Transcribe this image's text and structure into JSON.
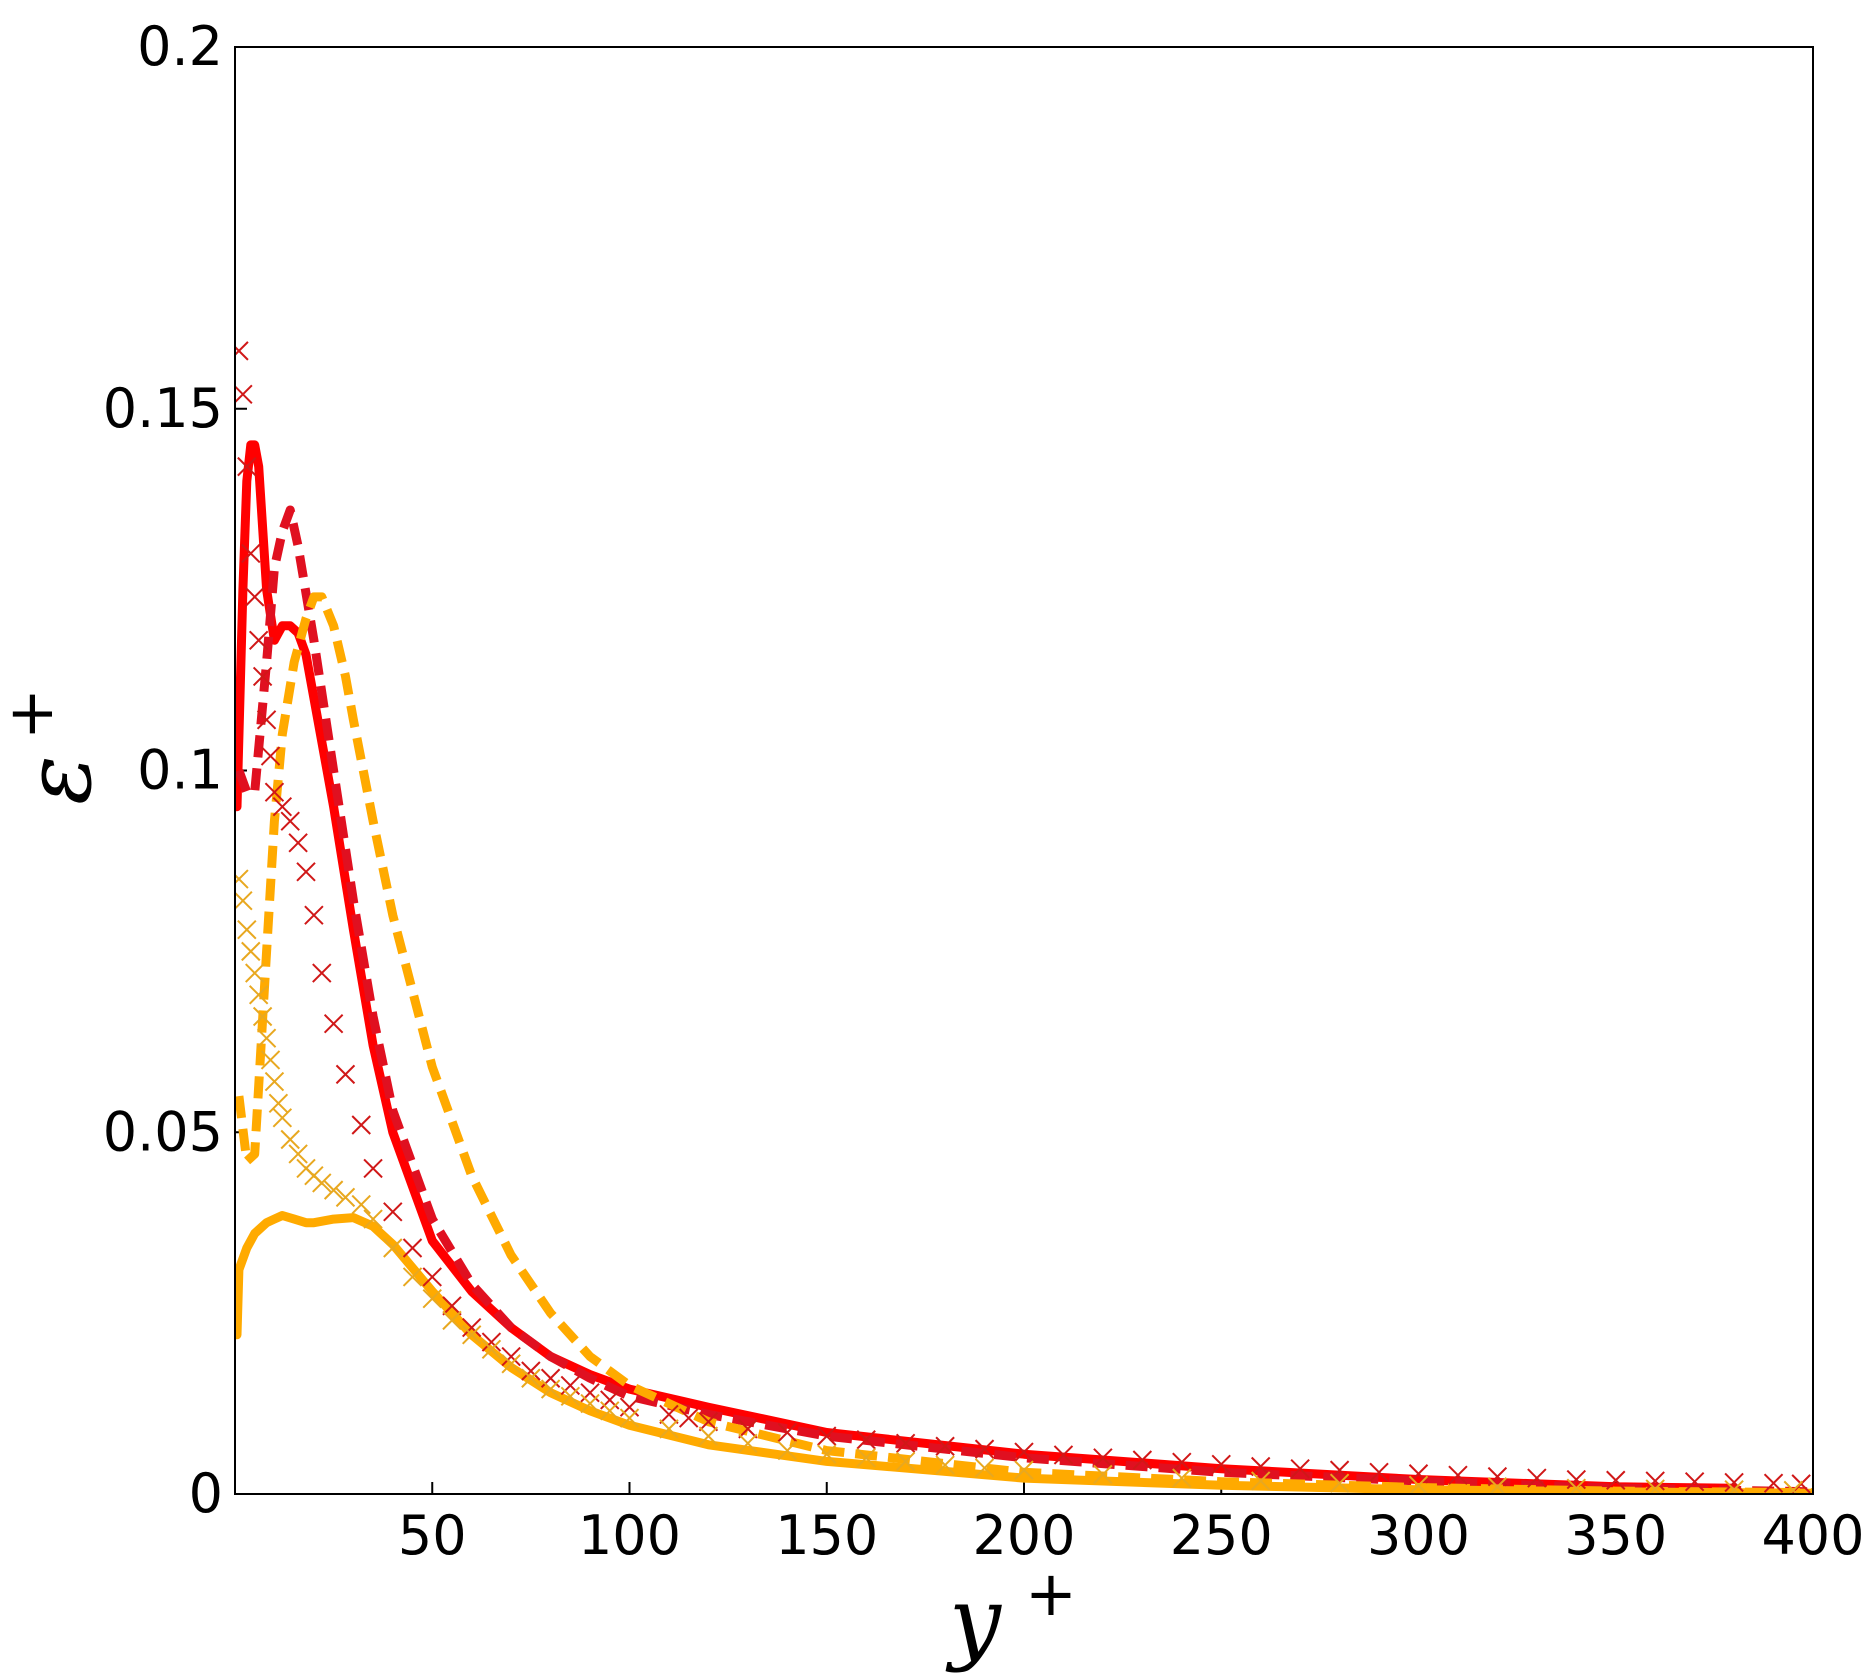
{
  "chart_data": {
    "type": "line",
    "title": "",
    "xlabel": "y",
    "xlabel_sup": "+",
    "ylabel": "ε",
    "ylabel_sup": "+",
    "xlim": [
      0,
      400
    ],
    "ylim": [
      0,
      0.2
    ],
    "xticks": [
      50,
      100,
      150,
      200,
      250,
      300,
      350,
      400
    ],
    "xtick_labels": [
      "50",
      "100",
      "150",
      "200",
      "250",
      "300",
      "350",
      "400"
    ],
    "yticks": [
      0,
      0.05,
      0.1,
      0.15,
      0.2
    ],
    "ytick_labels": [
      "0",
      "0.05",
      "0.1",
      "0.15",
      "0.2"
    ],
    "grid": false,
    "legend": "none",
    "series": [
      {
        "style": "solid",
        "color": "#ff0000",
        "x": [
          0.5,
          2,
          3,
          4,
          5,
          6,
          8,
          10,
          12,
          14,
          16,
          18,
          20,
          25,
          30,
          35,
          40,
          50,
          60,
          70,
          80,
          90,
          100,
          120,
          150,
          200,
          250,
          300,
          350,
          380
        ],
        "y": [
          0.095,
          0.125,
          0.14,
          0.145,
          0.145,
          0.142,
          0.125,
          0.118,
          0.12,
          0.12,
          0.119,
          0.116,
          0.11,
          0.095,
          0.078,
          0.062,
          0.05,
          0.035,
          0.028,
          0.023,
          0.019,
          0.0165,
          0.0145,
          0.012,
          0.0085,
          0.0055,
          0.0035,
          0.002,
          0.001,
          0.0008
        ]
      },
      {
        "style": "dashed",
        "color": "#e01020",
        "x": [
          1,
          3,
          5,
          8,
          10,
          12,
          14,
          16,
          20,
          25,
          30,
          35,
          40,
          50,
          60,
          70,
          80,
          90,
          100,
          120,
          150,
          200,
          250,
          300,
          350,
          400
        ],
        "y": [
          0.1,
          0.097,
          0.097,
          0.115,
          0.128,
          0.133,
          0.136,
          0.131,
          0.118,
          0.1,
          0.082,
          0.066,
          0.053,
          0.038,
          0.029,
          0.023,
          0.019,
          0.016,
          0.0135,
          0.011,
          0.008,
          0.005,
          0.003,
          0.0018,
          0.0008,
          0.0003
        ]
      },
      {
        "style": "dashed",
        "color": "#ffaa00",
        "x": [
          1,
          3,
          5,
          8,
          10,
          12,
          15,
          18,
          20,
          22,
          25,
          28,
          30,
          35,
          40,
          50,
          60,
          70,
          80,
          90,
          100,
          120,
          150,
          200,
          250,
          300,
          350,
          400
        ],
        "y": [
          0.055,
          0.046,
          0.047,
          0.075,
          0.093,
          0.105,
          0.115,
          0.121,
          0.124,
          0.124,
          0.12,
          0.113,
          0.107,
          0.093,
          0.08,
          0.059,
          0.044,
          0.033,
          0.025,
          0.019,
          0.015,
          0.01,
          0.006,
          0.003,
          0.0017,
          0.0009,
          0.0004,
          0.0002
        ]
      },
      {
        "style": "solid",
        "color": "#ffaa00",
        "x": [
          0.5,
          1,
          3,
          5,
          8,
          10,
          12,
          15,
          18,
          20,
          25,
          30,
          35,
          40,
          50,
          60,
          70,
          80,
          90,
          100,
          120,
          150,
          200,
          250,
          300,
          350,
          400
        ],
        "y": [
          0.022,
          0.031,
          0.034,
          0.036,
          0.0375,
          0.038,
          0.0385,
          0.038,
          0.0375,
          0.0375,
          0.038,
          0.0382,
          0.037,
          0.0345,
          0.028,
          0.022,
          0.0175,
          0.014,
          0.0115,
          0.0095,
          0.0068,
          0.0045,
          0.0022,
          0.0012,
          0.0006,
          0.0003,
          0.0001
        ]
      },
      {
        "style": "markers-x",
        "color": "#d01818",
        "x": [
          1,
          2,
          3,
          4,
          5,
          6,
          7,
          8,
          9,
          10,
          12,
          14,
          16,
          18,
          20,
          22,
          25,
          28,
          32,
          35,
          40,
          45,
          50,
          55,
          60,
          65,
          70,
          75,
          80,
          85,
          90,
          95,
          100,
          110,
          115,
          120,
          130,
          140,
          150,
          160,
          170,
          180,
          190,
          200,
          210,
          220,
          230,
          240,
          250,
          260,
          270,
          280,
          290,
          300,
          310,
          320,
          330,
          340,
          350,
          360,
          370,
          380,
          390,
          397
        ],
        "y": [
          0.158,
          0.152,
          0.142,
          0.13,
          0.124,
          0.118,
          0.113,
          0.107,
          0.102,
          0.097,
          0.095,
          0.093,
          0.09,
          0.086,
          0.08,
          0.072,
          0.065,
          0.058,
          0.051,
          0.045,
          0.039,
          0.034,
          0.03,
          0.026,
          0.023,
          0.021,
          0.019,
          0.017,
          0.016,
          0.015,
          0.014,
          0.013,
          0.012,
          0.011,
          0.0105,
          0.01,
          0.009,
          0.0085,
          0.008,
          0.0075,
          0.007,
          0.0066,
          0.0062,
          0.0058,
          0.0054,
          0.005,
          0.0047,
          0.0044,
          0.0041,
          0.0038,
          0.0035,
          0.0033,
          0.003,
          0.0028,
          0.0026,
          0.0024,
          0.0022,
          0.002,
          0.0019,
          0.0018,
          0.0017,
          0.0016,
          0.0015,
          0.0014
        ]
      },
      {
        "style": "markers-x",
        "color": "#e8a820",
        "x": [
          1,
          2,
          3,
          4,
          5,
          6,
          7,
          8,
          9,
          10,
          11,
          12,
          14,
          16,
          18,
          20,
          22,
          25,
          28,
          32,
          35,
          40,
          45,
          50,
          55,
          60,
          65,
          70,
          75,
          80,
          85,
          90,
          95,
          100,
          110,
          120,
          130,
          140,
          150,
          160,
          170,
          180,
          190,
          200,
          220,
          240,
          260,
          280,
          300,
          320,
          340,
          360,
          380,
          395
        ],
        "y": [
          0.085,
          0.082,
          0.078,
          0.075,
          0.072,
          0.069,
          0.066,
          0.063,
          0.06,
          0.057,
          0.054,
          0.052,
          0.049,
          0.047,
          0.045,
          0.044,
          0.043,
          0.042,
          0.041,
          0.04,
          0.038,
          0.034,
          0.03,
          0.027,
          0.024,
          0.022,
          0.02,
          0.018,
          0.016,
          0.0145,
          0.0135,
          0.0125,
          0.0115,
          0.0105,
          0.009,
          0.008,
          0.007,
          0.006,
          0.0055,
          0.005,
          0.0045,
          0.004,
          0.0036,
          0.0033,
          0.0027,
          0.0022,
          0.0018,
          0.0015,
          0.0012,
          0.001,
          0.0008,
          0.0007,
          0.0006,
          0.0005
        ]
      }
    ]
  }
}
